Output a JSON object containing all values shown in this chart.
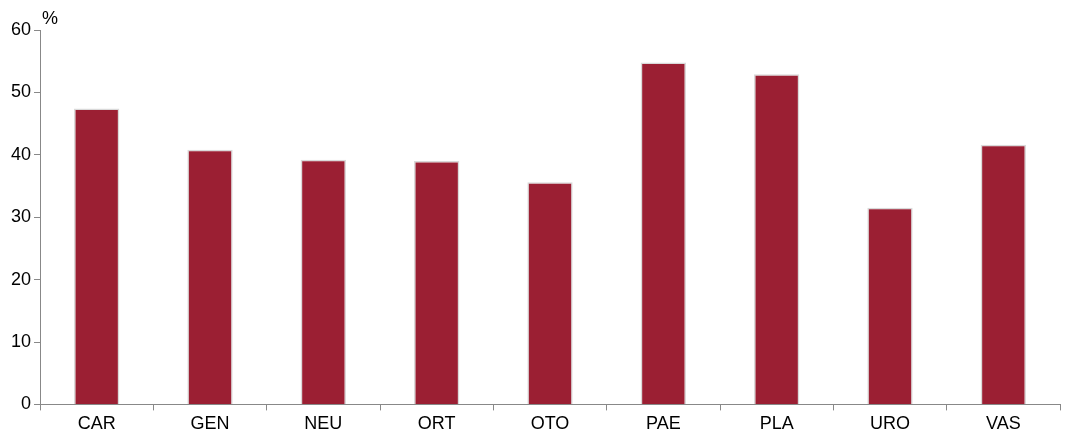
{
  "chart_data": {
    "type": "bar",
    "ylabel": "%",
    "categories": [
      "CAR",
      "GEN",
      "NEU",
      "ORT",
      "OTO",
      "PAE",
      "PLA",
      "URO",
      "VAS"
    ],
    "values": [
      47.4,
      40.8,
      39.2,
      39.0,
      35.6,
      54.8,
      52.9,
      31.5,
      41.6
    ],
    "color": "#9b1f33",
    "ylim": [
      0,
      60
    ],
    "yticks": [
      0,
      10,
      20,
      30,
      40,
      50,
      60
    ],
    "grid": false,
    "legend": false
  }
}
